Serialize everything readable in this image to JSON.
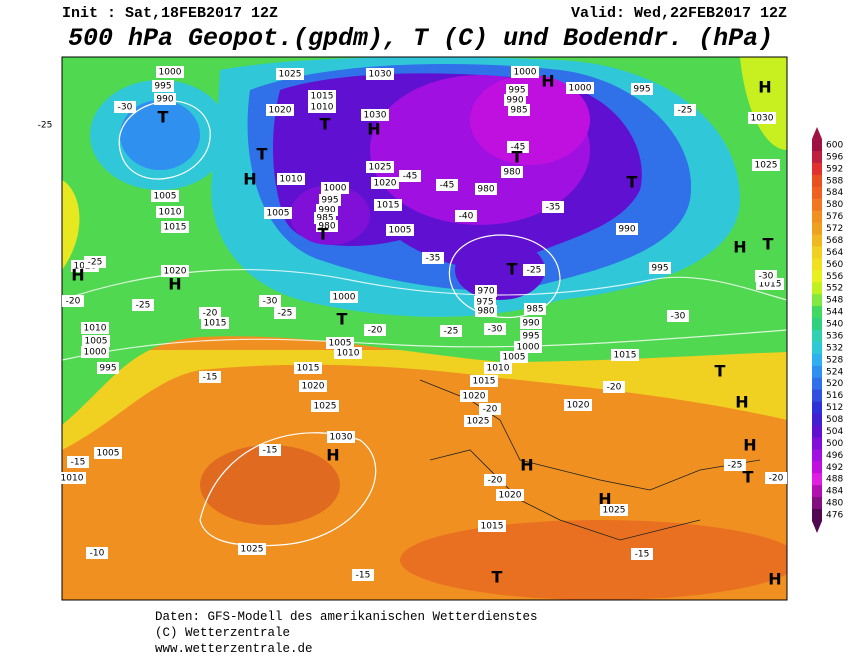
{
  "header": {
    "init": "Init : Sat,18FEB2017 12Z",
    "valid": "Valid: Wed,22FEB2017 12Z",
    "title": "500 hPa Geopot.(gpdm), T (C) und Bodendr. (hPa)"
  },
  "colorbar": {
    "labels": [
      "600",
      "596",
      "592",
      "588",
      "584",
      "580",
      "576",
      "572",
      "568",
      "564",
      "560",
      "556",
      "552",
      "548",
      "544",
      "540",
      "536",
      "532",
      "528",
      "524",
      "520",
      "516",
      "512",
      "508",
      "504",
      "500",
      "496",
      "492",
      "488",
      "484",
      "480",
      "476"
    ],
    "colors": [
      "#a01040",
      "#c02040",
      "#e03030",
      "#e85020",
      "#f06020",
      "#f07820",
      "#f09020",
      "#f0a020",
      "#f0b820",
      "#f0d020",
      "#f0e020",
      "#e8f020",
      "#c0f020",
      "#80e840",
      "#40d860",
      "#30d080",
      "#30d0b0",
      "#30c8d8",
      "#30b0f0",
      "#3090f0",
      "#3070e8",
      "#3050e0",
      "#3030d8",
      "#4020d0",
      "#6010d0",
      "#8010d8",
      "#a010e0",
      "#c010e0",
      "#e020e0",
      "#b010b0",
      "#801080",
      "#500850"
    ]
  },
  "map_labels": [
    "1000",
    "995",
    "990",
    "T",
    "-30",
    "-25",
    "1025",
    "1030",
    "1020",
    "1015",
    "1010",
    "T",
    "H",
    "1030",
    "1025",
    "1020",
    "1015",
    "T",
    "H",
    "1010",
    "1005",
    "1000",
    "995",
    "990",
    "985",
    "980",
    "T",
    "1005",
    "-45",
    "-45",
    "980",
    "-40",
    "-45",
    "T",
    "980",
    "1000",
    "995",
    "990",
    "985",
    "H",
    "1000",
    "995",
    "-35",
    "990",
    "T",
    "-25",
    "1030",
    "H",
    "1025",
    "995",
    "H",
    "T",
    "1015",
    "-30",
    "-30",
    "T",
    "970",
    "975",
    "980",
    "985",
    "990",
    "995",
    "1000",
    "1005",
    "1010",
    "-30",
    "-25",
    "-35",
    "-25",
    "1000",
    "T",
    "-20",
    "1005",
    "1010",
    "-30",
    "-25",
    "-20",
    "1015",
    "1005",
    "1010",
    "1015",
    "1020",
    "1020",
    "H",
    "-25",
    "-20",
    "-25",
    "H",
    "1010",
    "1005",
    "1000",
    "995",
    "-15",
    "1015",
    "1020",
    "1025",
    "1030",
    "H",
    "-15",
    "1015",
    "1020",
    "-20",
    "1025",
    "-20",
    "1020",
    "1015",
    "T",
    "H",
    "T",
    "H",
    "-25",
    "-20",
    "H",
    "-20",
    "1020",
    "H",
    "1025",
    "1015",
    "T",
    "-15",
    "-15",
    "1025",
    "-10",
    "-15",
    "1005",
    "1010",
    "H"
  ],
  "footer": [
    "Daten: GFS-Modell des amerikanischen Wetterdienstes",
    "(C) Wetterzentrale",
    "www.wetterzentrale.de"
  ]
}
